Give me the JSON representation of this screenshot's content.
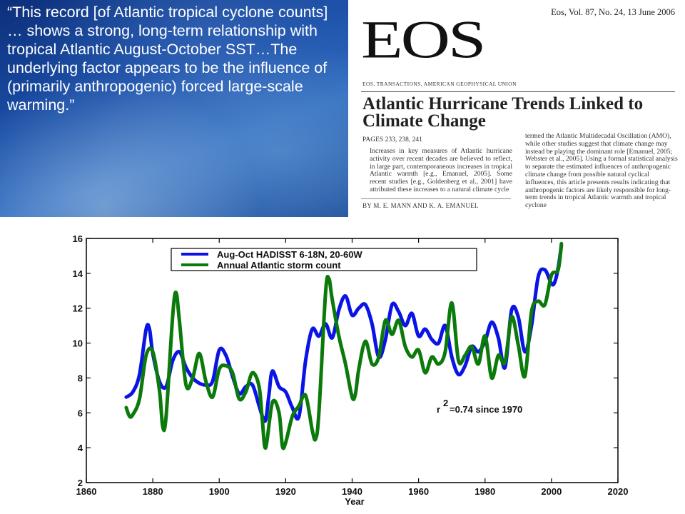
{
  "quote": {
    "text": "“This record [of Atlantic tropical cyclone counts] … shows a strong, long-term relationship with tropical Atlantic August-October SST…The underlying factor appears to be the influence of (primarily anthropogenic) forced large-scale warming.”"
  },
  "article": {
    "issue": "Eos, Vol. 87, No. 24, 13 June 2006",
    "logo": "EOS",
    "subtitle": "EOS, TRANSACTIONS, AMERICAN GEOPHYSICAL UNION",
    "title": "Atlantic Hurricane Trends Linked to Climate Change",
    "pages": "PAGES 233, 238, 241",
    "col1": "Increases in key measures of Atlantic hurricane activity over recent decades are believed to reflect, in large part, contemporaneous increases in tropical Atlantic warmth [e.g., Emanuel, 2005]. Some recent studies [e.g., Goldenberg et al., 2001] have attributed these increases to a natural climate cycle",
    "col2": "termed the Atlantic Multidecadal Oscillation (AMO), while other studies suggest that climate change may instead be playing the dominant role [Emanuel, 2005; Webster et al., 2005]. Using a formal statistical analysis to separate the estimated influences of anthropogenic climate change from possible natural cyclical influences, this article presents results indicating that anthropogenic factors are likely responsible for long-term trends in tropical Atlantic warmth and tropical cyclone",
    "authors": "BY M. E. MANN AND K. A. EMANUEL"
  },
  "chart_data": {
    "type": "line",
    "xlabel": "Year",
    "ylabel": "",
    "xlim": [
      1860,
      2020
    ],
    "ylim": [
      2,
      16
    ],
    "xticks": [
      1860,
      1880,
      1900,
      1920,
      1940,
      1960,
      1980,
      2000,
      2020
    ],
    "yticks": [
      2,
      4,
      6,
      8,
      10,
      12,
      14,
      16
    ],
    "grid": false,
    "legend_position": "top",
    "annotation": {
      "text": "=0.74  since 1970",
      "symbol": "r",
      "superscript": "2",
      "x": 1964,
      "y": 6.2
    },
    "series": [
      {
        "name": "Aug-Oct HADISST 6-18N, 20-60W",
        "color": "#0a14e6",
        "x": [
          1872,
          1874,
          1876,
          1878,
          1879,
          1880,
          1882,
          1884,
          1886,
          1888,
          1890,
          1892,
          1894,
          1896,
          1898,
          1900,
          1902,
          1904,
          1906,
          1908,
          1910,
          1912,
          1913,
          1914,
          1915,
          1916,
          1918,
          1920,
          1922,
          1924,
          1926,
          1928,
          1930,
          1932,
          1934,
          1936,
          1938,
          1940,
          1942,
          1944,
          1946,
          1948,
          1950,
          1952,
          1954,
          1956,
          1958,
          1960,
          1962,
          1964,
          1966,
          1968,
          1970,
          1972,
          1974,
          1976,
          1978,
          1980,
          1982,
          1984,
          1986,
          1988,
          1990,
          1992,
          1994,
          1996,
          1998,
          2000,
          2001,
          2002,
          2003
        ],
        "y": [
          6.9,
          7.2,
          8.2,
          10.8,
          10.8,
          9.4,
          7.8,
          7.5,
          9.0,
          9.5,
          8.6,
          8.0,
          7.7,
          7.6,
          7.8,
          9.6,
          9.3,
          8.1,
          7.1,
          7.5,
          7.6,
          6.4,
          5.8,
          5.6,
          7.1,
          8.4,
          7.5,
          7.2,
          6.3,
          5.8,
          9.0,
          10.8,
          10.4,
          11.1,
          10.3,
          11.9,
          12.7,
          11.6,
          12.0,
          12.2,
          11.1,
          9.2,
          10.2,
          12.2,
          11.8,
          11.0,
          11.7,
          10.4,
          10.8,
          10.2,
          10.0,
          11.0,
          9.2,
          8.2,
          8.7,
          9.8,
          9.5,
          10.1,
          11.2,
          10.3,
          8.6,
          11.9,
          11.5,
          9.5,
          11.0,
          13.8,
          14.2,
          13.4,
          13.5,
          14.3,
          15.6
        ]
      },
      {
        "name": "Annual Atlantic storm count",
        "color": "#0b7a0b",
        "x": [
          1872,
          1873,
          1874,
          1876,
          1878,
          1880,
          1882,
          1883,
          1884,
          1886,
          1887,
          1888,
          1890,
          1892,
          1894,
          1896,
          1898,
          1900,
          1902,
          1904,
          1906,
          1908,
          1910,
          1912,
          1913,
          1914,
          1916,
          1918,
          1919,
          1920,
          1922,
          1924,
          1926,
          1928,
          1929,
          1930,
          1932,
          1933,
          1934,
          1936,
          1938,
          1940,
          1941,
          1942,
          1944,
          1946,
          1948,
          1950,
          1952,
          1954,
          1956,
          1958,
          1960,
          1962,
          1964,
          1966,
          1968,
          1970,
          1972,
          1974,
          1976,
          1978,
          1980,
          1982,
          1984,
          1986,
          1988,
          1990,
          1992,
          1994,
          1996,
          1998,
          2000,
          2002,
          2003
        ],
        "y": [
          6.3,
          5.8,
          5.9,
          6.8,
          9.3,
          9.5,
          7.3,
          5.2,
          5.8,
          11.6,
          12.9,
          11.3,
          7.6,
          8.0,
          9.4,
          7.8,
          6.9,
          8.5,
          8.7,
          8.3,
          6.8,
          7.2,
          8.3,
          7.5,
          5.5,
          4.0,
          6.6,
          6.0,
          4.1,
          4.3,
          5.8,
          6.4,
          7.0,
          5.0,
          4.5,
          6.0,
          12.9,
          13.7,
          12.5,
          10.4,
          8.8,
          6.9,
          7.1,
          8.5,
          10.1,
          8.8,
          9.2,
          11.3,
          10.5,
          11.3,
          9.8,
          9.2,
          9.6,
          8.3,
          9.2,
          8.8,
          9.5,
          12.3,
          9.0,
          9.3,
          9.8,
          8.8,
          10.4,
          8.0,
          9.3,
          8.9,
          11.5,
          9.9,
          8.1,
          11.8,
          12.4,
          12.2,
          13.9,
          14.2,
          15.7
        ]
      }
    ]
  }
}
